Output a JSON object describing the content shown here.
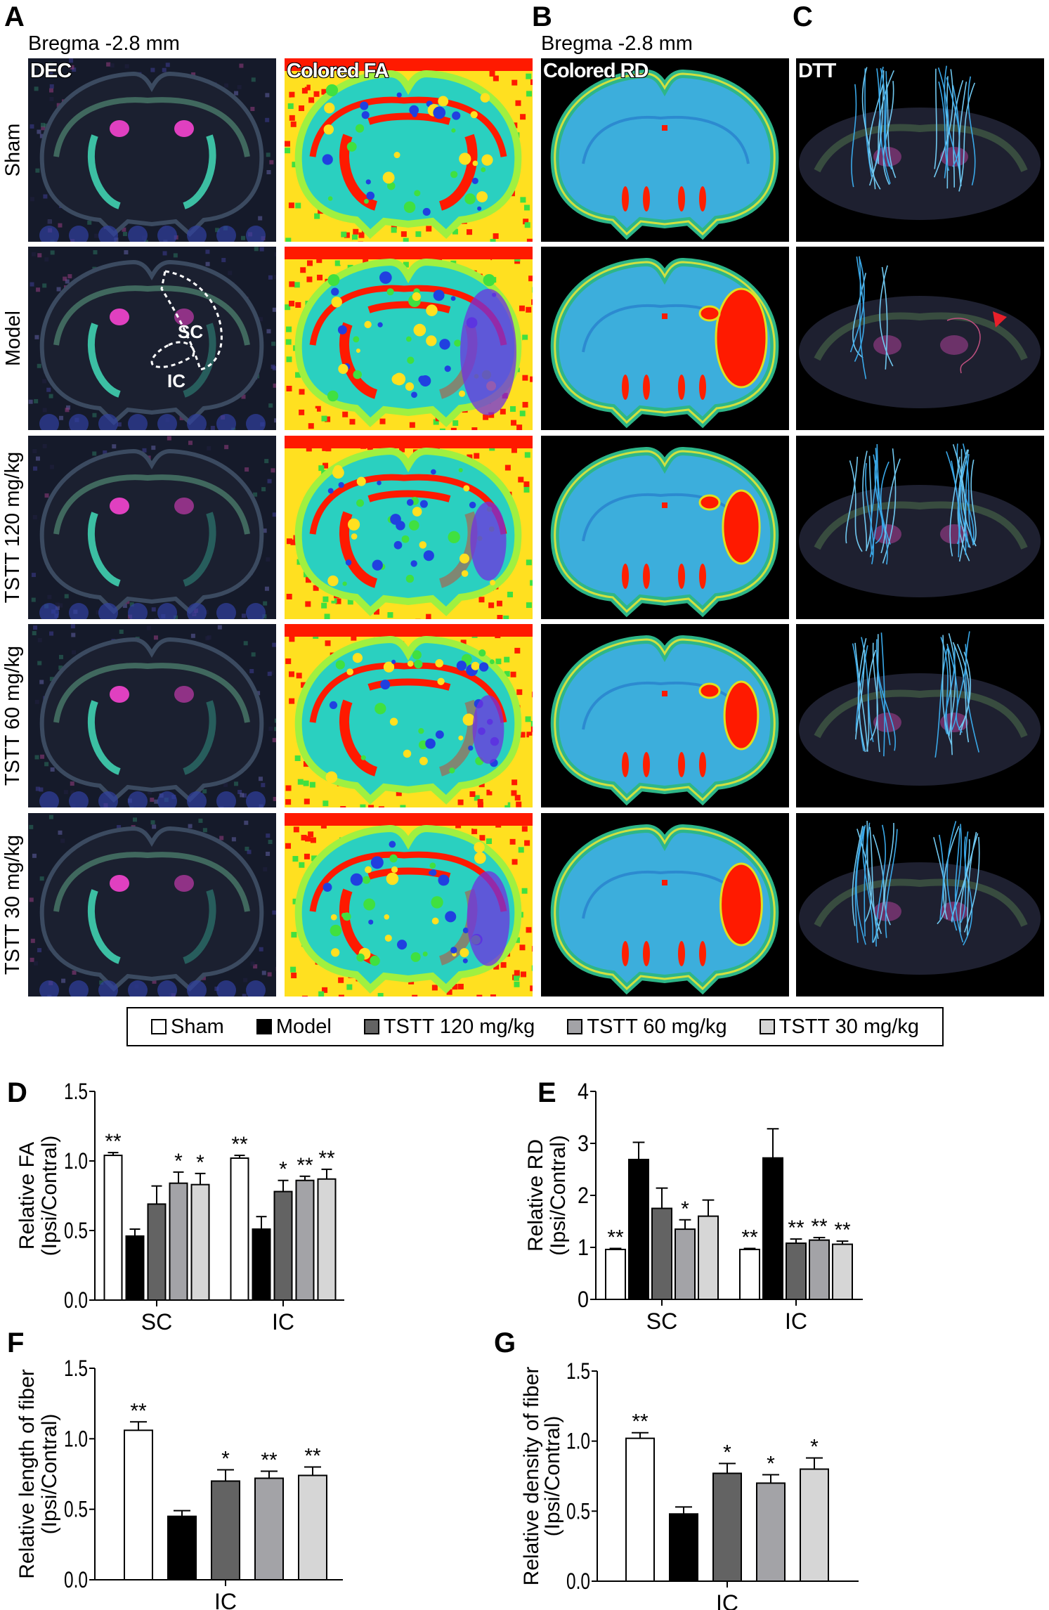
{
  "panel_letters": {
    "a": "A",
    "b": "B",
    "c": "C",
    "d": "D",
    "e": "E",
    "f": "F",
    "g": "G"
  },
  "bregma": {
    "a": "Bregma -2.8 mm",
    "b": "Bregma -2.8 mm"
  },
  "column_titles": [
    "DEC",
    "Colored FA",
    "Colored RD",
    "DTT"
  ],
  "row_labels": [
    "Sham",
    "Model",
    "TSTT 120 mg/kg",
    "TSTT 60 mg/kg",
    "TSTT 30 mg/kg"
  ],
  "roi_labels": {
    "sc": "SC",
    "ic": "IC"
  },
  "legend": [
    {
      "label": "Sham",
      "color": "#ffffff"
    },
    {
      "label": "Model",
      "color": "#000000"
    },
    {
      "label": "TSTT 120 mg/kg",
      "color": "#636363"
    },
    {
      "label": "TSTT 60 mg/kg",
      "color": "#a3a3a7"
    },
    {
      "label": "TSTT 30 mg/kg",
      "color": "#d6d6d6"
    }
  ],
  "chart_data": [
    {
      "id": "D",
      "type": "bar",
      "ylabel": [
        "Relative FA",
        "(Ipsi/Contral)"
      ],
      "ylim": [
        0,
        1.5
      ],
      "yticks": [
        "0.0",
        "0.5",
        "1.0",
        "1.5"
      ],
      "ytick_values": [
        0,
        0.5,
        1.0,
        1.5
      ],
      "categories": [
        "SC",
        "IC"
      ],
      "series": [
        {
          "name": "Sham",
          "values": [
            1.04,
            1.02
          ],
          "errors": [
            0.02,
            0.02
          ],
          "sig": [
            "**",
            "**"
          ]
        },
        {
          "name": "Model",
          "values": [
            0.46,
            0.51
          ],
          "errors": [
            0.05,
            0.09
          ],
          "sig": [
            "",
            ""
          ]
        },
        {
          "name": "TSTT 120 mg/kg",
          "values": [
            0.69,
            0.78
          ],
          "errors": [
            0.13,
            0.08
          ],
          "sig": [
            "",
            "*"
          ]
        },
        {
          "name": "TSTT 60 mg/kg",
          "values": [
            0.84,
            0.86
          ],
          "errors": [
            0.08,
            0.03
          ],
          "sig": [
            "*",
            "**"
          ]
        },
        {
          "name": "TSTT 30 mg/kg",
          "values": [
            0.83,
            0.87
          ],
          "errors": [
            0.08,
            0.07
          ],
          "sig": [
            "*",
            "**"
          ]
        }
      ]
    },
    {
      "id": "E",
      "type": "bar",
      "ylabel": [
        "Relative RD",
        "(Ipsi/Contral)"
      ],
      "ylim": [
        0,
        4
      ],
      "yticks": [
        "0",
        "1",
        "2",
        "3",
        "4"
      ],
      "ytick_values": [
        0,
        1,
        2,
        3,
        4
      ],
      "categories": [
        "SC",
        "IC"
      ],
      "series": [
        {
          "name": "Sham",
          "values": [
            0.96,
            0.96
          ],
          "errors": [
            0.02,
            0.02
          ],
          "sig": [
            "**",
            "**"
          ]
        },
        {
          "name": "Model",
          "values": [
            2.69,
            2.72
          ],
          "errors": [
            0.33,
            0.56
          ],
          "sig": [
            "",
            ""
          ]
        },
        {
          "name": "TSTT 120 mg/kg",
          "values": [
            1.75,
            1.08
          ],
          "errors": [
            0.39,
            0.08
          ],
          "sig": [
            "",
            "**"
          ]
        },
        {
          "name": "TSTT 60 mg/kg",
          "values": [
            1.35,
            1.14
          ],
          "errors": [
            0.18,
            0.05
          ],
          "sig": [
            "*",
            "**"
          ]
        },
        {
          "name": "TSTT 30 mg/kg",
          "values": [
            1.6,
            1.06
          ],
          "errors": [
            0.31,
            0.06
          ],
          "sig": [
            "",
            "**"
          ]
        }
      ]
    },
    {
      "id": "F",
      "type": "bar",
      "ylabel": [
        "Relative length of fiber",
        "(Ipsi/Contral)"
      ],
      "ylim": [
        0,
        1.5
      ],
      "yticks": [
        "0.0",
        "0.5",
        "1.0",
        "1.5"
      ],
      "ytick_values": [
        0,
        0.5,
        1.0,
        1.5
      ],
      "categories": [
        "IC"
      ],
      "series": [
        {
          "name": "Sham",
          "values": [
            1.06
          ],
          "errors": [
            0.06
          ],
          "sig": [
            "**"
          ]
        },
        {
          "name": "Model",
          "values": [
            0.45
          ],
          "errors": [
            0.04
          ],
          "sig": [
            ""
          ]
        },
        {
          "name": "TSTT 120 mg/kg",
          "values": [
            0.7
          ],
          "errors": [
            0.08
          ],
          "sig": [
            "*"
          ]
        },
        {
          "name": "TSTT 60 mg/kg",
          "values": [
            0.72
          ],
          "errors": [
            0.05
          ],
          "sig": [
            "**"
          ]
        },
        {
          "name": "TSTT 30 mg/kg",
          "values": [
            0.74
          ],
          "errors": [
            0.06
          ],
          "sig": [
            "**"
          ]
        }
      ]
    },
    {
      "id": "G",
      "type": "bar",
      "ylabel": [
        "Relative density of fiber",
        "(Ipsi/Contral)"
      ],
      "ylim": [
        0,
        1.5
      ],
      "yticks": [
        "0.0",
        "0.5",
        "1.0",
        "1.5"
      ],
      "ytick_values": [
        0,
        0.5,
        1.0,
        1.5
      ],
      "categories": [
        "IC"
      ],
      "series": [
        {
          "name": "Sham",
          "values": [
            1.02
          ],
          "errors": [
            0.04
          ],
          "sig": [
            "**"
          ]
        },
        {
          "name": "Model",
          "values": [
            0.48
          ],
          "errors": [
            0.05
          ],
          "sig": [
            ""
          ]
        },
        {
          "name": "TSTT 120 mg/kg",
          "values": [
            0.77
          ],
          "errors": [
            0.07
          ],
          "sig": [
            "*"
          ]
        },
        {
          "name": "TSTT 60 mg/kg",
          "values": [
            0.7
          ],
          "errors": [
            0.06
          ],
          "sig": [
            "*"
          ]
        },
        {
          "name": "TSTT 30 mg/kg",
          "values": [
            0.8
          ],
          "errors": [
            0.08
          ],
          "sig": [
            "*"
          ]
        }
      ]
    }
  ]
}
